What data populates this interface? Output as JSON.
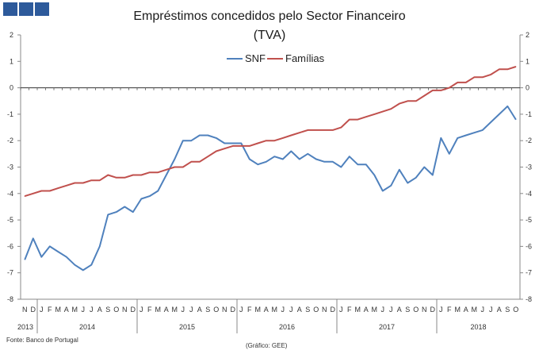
{
  "logo": {
    "name": "Banco de Portugal logo blocks",
    "color": "#2d5a9b"
  },
  "chart_data": {
    "type": "line",
    "title": "Empréstimos concedidos pelo Sector Financeiro",
    "subtitle": "(TVA)",
    "ylim": [
      -8,
      2
    ],
    "yticks": [
      2,
      1,
      0,
      -1,
      -2,
      -3,
      -4,
      -5,
      -6,
      -7,
      -8
    ],
    "ytick_labels": [
      "2",
      "1",
      "0",
      "-1",
      "-2",
      "-3",
      "-4",
      "-5",
      "-6",
      "-7",
      "-8"
    ],
    "month_labels": [
      "N",
      "D",
      "J",
      "F",
      "M",
      "A",
      "M",
      "J",
      "J",
      "A",
      "S",
      "O",
      "N",
      "D",
      "J",
      "F",
      "M",
      "A",
      "M",
      "J",
      "J",
      "A",
      "S",
      "O",
      "N",
      "D",
      "J",
      "F",
      "M",
      "A",
      "M",
      "J",
      "J",
      "A",
      "S",
      "O",
      "N",
      "D",
      "J",
      "F",
      "M",
      "A",
      "M",
      "J",
      "J",
      "A",
      "S",
      "O",
      "N",
      "D",
      "J",
      "F",
      "M",
      "A",
      "M",
      "J",
      "J",
      "A",
      "S",
      "O"
    ],
    "year_labels": [
      {
        "label": "2013",
        "start": 0,
        "end": 1
      },
      {
        "label": "2014",
        "start": 2,
        "end": 13
      },
      {
        "label": "2015",
        "start": 14,
        "end": 25
      },
      {
        "label": "2016",
        "start": 26,
        "end": 37
      },
      {
        "label": "2017",
        "start": 38,
        "end": 49
      },
      {
        "label": "2018",
        "start": 50,
        "end": 59
      }
    ],
    "legend_position": "top-center",
    "series": [
      {
        "name": "SNF",
        "color": "#4f81bd",
        "values": [
          -6.5,
          -5.7,
          -6.4,
          -6.0,
          -6.2,
          -6.4,
          -6.7,
          -6.9,
          -6.7,
          -6.0,
          -4.8,
          -4.7,
          -4.5,
          -4.7,
          -4.2,
          -4.1,
          -3.9,
          -3.3,
          -2.7,
          -2.0,
          -2.0,
          -1.8,
          -1.8,
          -1.9,
          -2.1,
          -2.1,
          -2.1,
          -2.7,
          -2.9,
          -2.8,
          -2.6,
          -2.7,
          -2.4,
          -2.7,
          -2.5,
          -2.7,
          -2.8,
          -2.8,
          -3.0,
          -2.6,
          -2.9,
          -2.9,
          -3.3,
          -3.9,
          -3.7,
          -3.1,
          -3.6,
          -3.4,
          -3.0,
          -3.3,
          -1.9,
          -2.5,
          -1.9,
          -1.8,
          -1.7,
          -1.6,
          -1.3,
          -1.0,
          -0.7,
          -1.2
        ]
      },
      {
        "name": "Famílias",
        "color": "#c0504d",
        "values": [
          -4.1,
          -4.0,
          -3.9,
          -3.9,
          -3.8,
          -3.7,
          -3.6,
          -3.6,
          -3.5,
          -3.5,
          -3.3,
          -3.4,
          -3.4,
          -3.3,
          -3.3,
          -3.2,
          -3.2,
          -3.1,
          -3.0,
          -3.0,
          -2.8,
          -2.8,
          -2.6,
          -2.4,
          -2.3,
          -2.2,
          -2.2,
          -2.2,
          -2.1,
          -2.0,
          -2.0,
          -1.9,
          -1.8,
          -1.7,
          -1.6,
          -1.6,
          -1.6,
          -1.6,
          -1.5,
          -1.2,
          -1.2,
          -1.1,
          -1.0,
          -0.9,
          -0.8,
          -0.6,
          -0.5,
          -0.5,
          -0.3,
          -0.1,
          -0.1,
          0.0,
          0.2,
          0.2,
          0.4,
          0.4,
          0.5,
          0.7,
          0.7,
          0.8
        ]
      }
    ]
  },
  "footer": {
    "source": "Fonte: Banco de Portugal",
    "credit": "(Gráfico: GEE)"
  }
}
